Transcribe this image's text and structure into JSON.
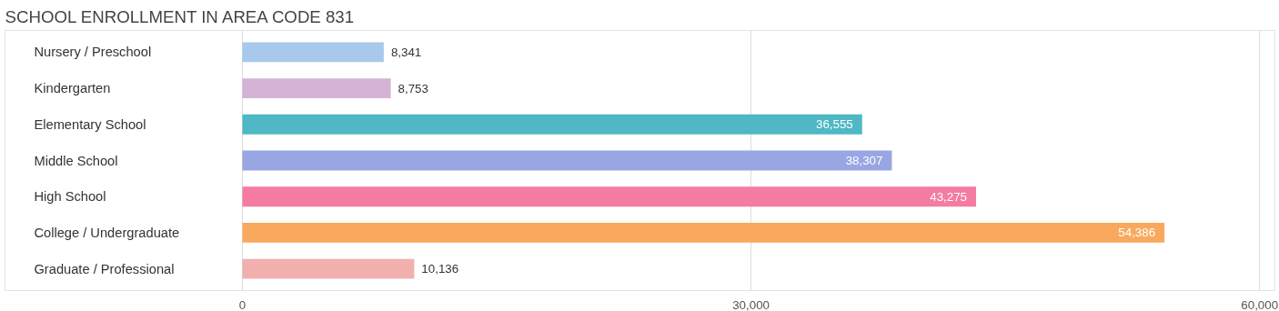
{
  "chart_data": {
    "type": "bar",
    "orientation": "horizontal",
    "title": "SCHOOL ENROLLMENT IN AREA CODE 831",
    "categories": [
      "Nursery / Preschool",
      "Kindergarten",
      "Elementary School",
      "Middle School",
      "High School",
      "College / Undergraduate",
      "Graduate / Professional"
    ],
    "values": [
      8341,
      8753,
      36555,
      38307,
      43275,
      54386,
      10136
    ],
    "colors": [
      "#a9c9ec",
      "#d3b2d6",
      "#4fb8c4",
      "#98a6e3",
      "#f47ba1",
      "#f9a95e",
      "#f1afae"
    ],
    "value_labels": [
      "8,341",
      "8,753",
      "36,555",
      "38,307",
      "43,275",
      "54,386",
      "10,136"
    ],
    "xlim": [
      -14000,
      60900
    ],
    "xticks": [
      0,
      {
        "value": 30000,
        "label": "30,000"
      },
      {
        "value": 60000,
        "label": "60,000"
      }
    ],
    "grid": "x"
  }
}
